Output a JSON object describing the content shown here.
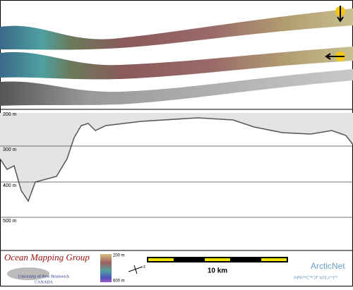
{
  "profile": {
    "depth_labels": [
      "200 m",
      "300 m",
      "400 m",
      "500 m"
    ]
  },
  "footer": {
    "group": "Ocean Mapping Group",
    "university": "University of New Brunswick",
    "country": "CANADA",
    "colorbar": {
      "top": "200 m",
      "bottom": "600 m"
    },
    "compass": "z",
    "scale": "10 km",
    "partner": "ArcticNet",
    "partner_inuktitut": "ᐅᑭᐅᖅᑕᖅᑐᒥ ᑲᑎᒪᔨᖏᑦ"
  }
}
